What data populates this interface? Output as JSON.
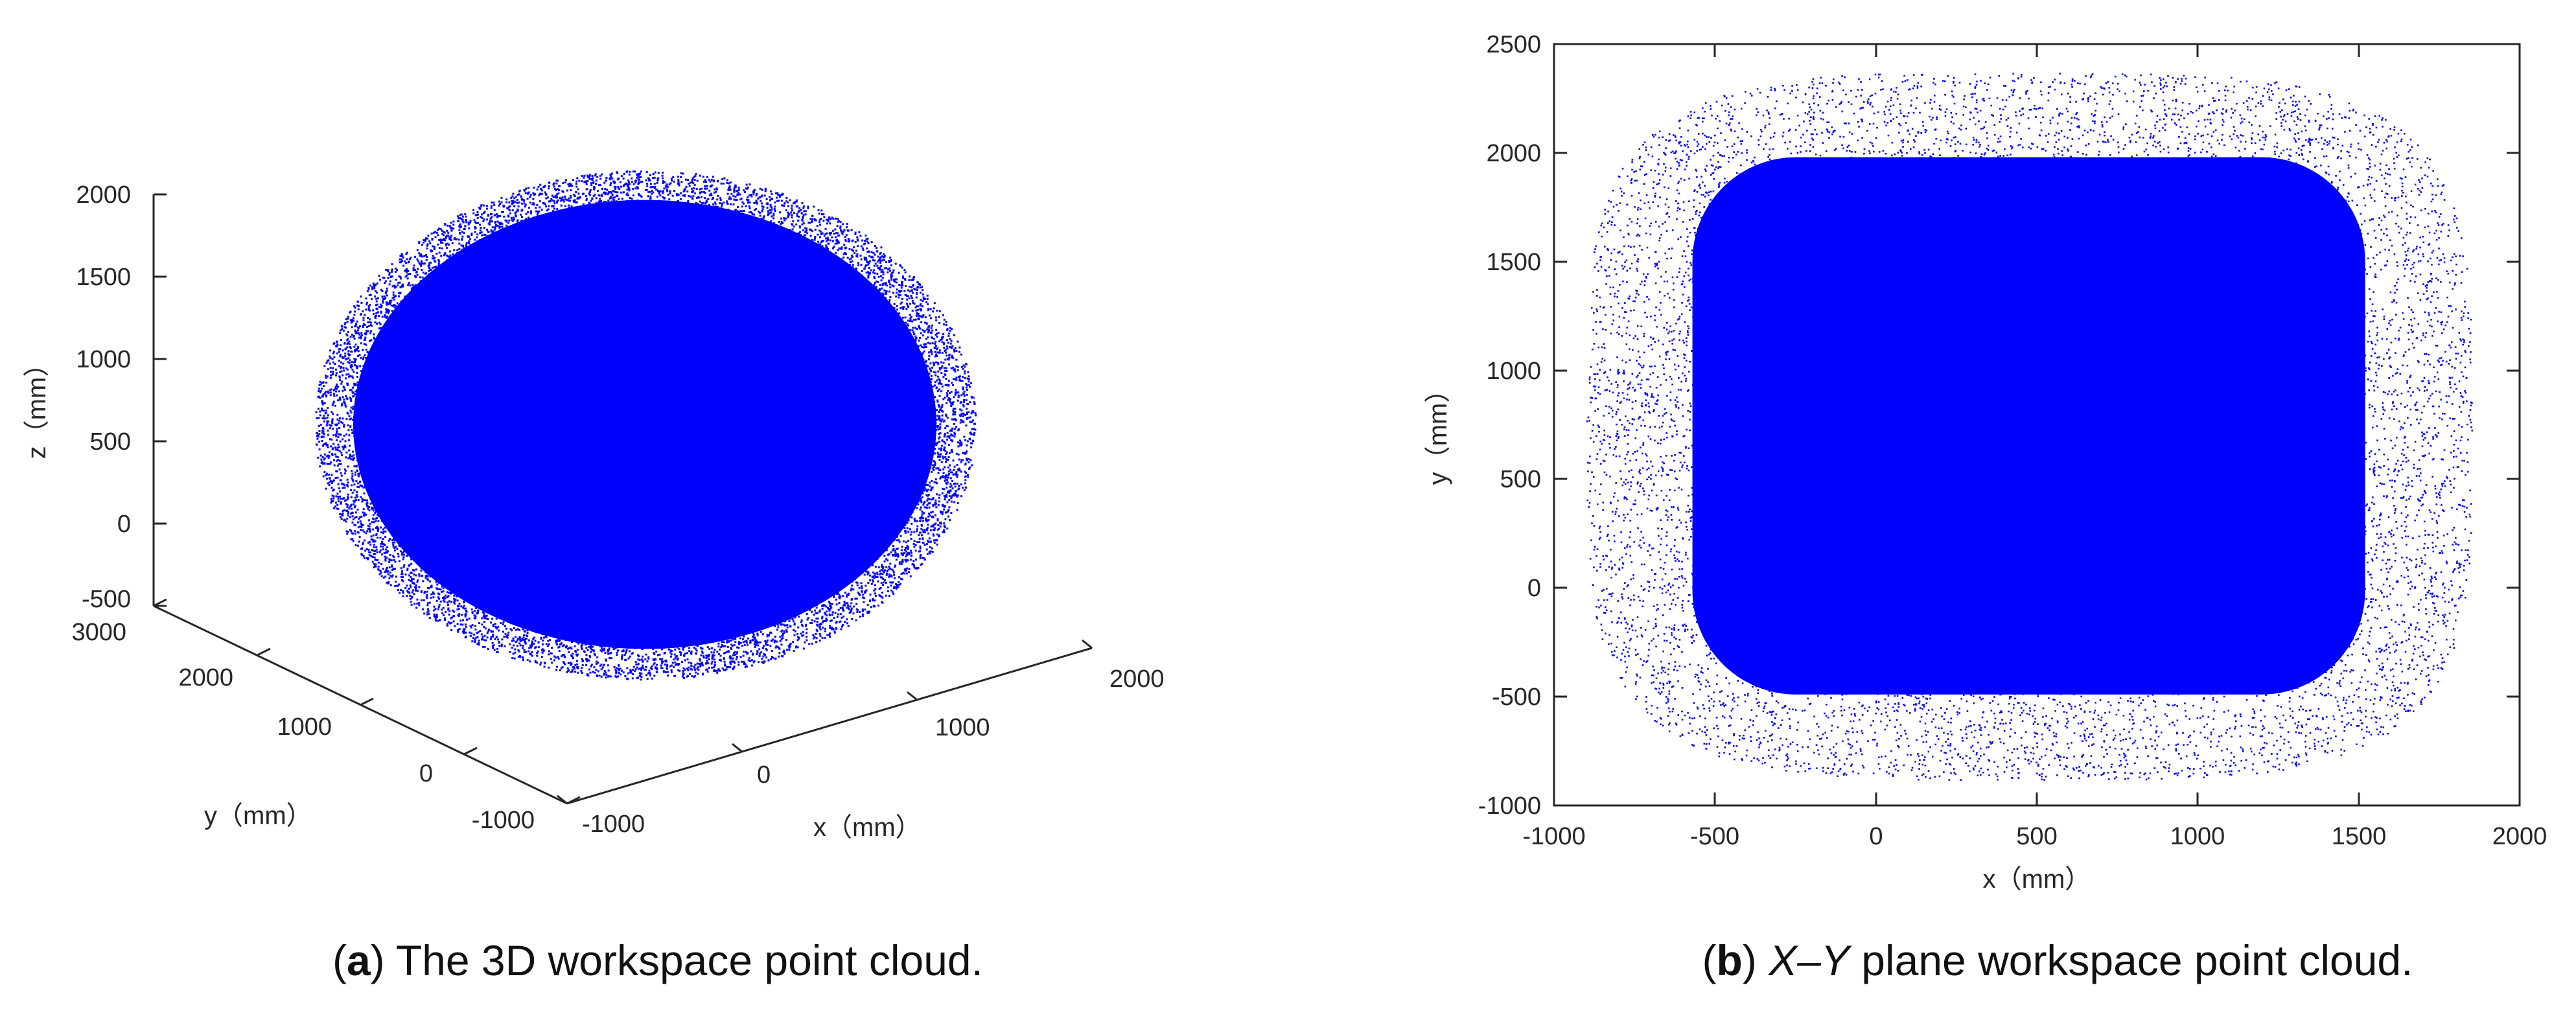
{
  "chart_data": [
    {
      "type": "scatter",
      "panel_label": "a",
      "caption": "The 3D workspace point cloud.",
      "xlabel": "x（mm）",
      "ylabel": "y（mm）",
      "zlabel": "z（mm）",
      "xlim": [
        -1000,
        2000
      ],
      "ylim": [
        -1000,
        3000
      ],
      "zlim": [
        -500,
        2000
      ],
      "x_ticks": [
        "-1000",
        "0",
        "1000",
        "2000"
      ],
      "y_ticks": [
        "-1000",
        "0",
        "1000",
        "2000",
        "3000"
      ],
      "z_ticks": [
        "-500",
        "0",
        "500",
        "1000",
        "1500",
        "2000"
      ],
      "cloud": {
        "x_range": [
          -900,
          1850
        ],
        "y_range": [
          -800,
          2400
        ],
        "z_range": [
          -500,
          1900
        ]
      },
      "marker_color": "#0000ff"
    },
    {
      "type": "scatter",
      "panel_label": "b",
      "caption_italic": "X–Y",
      "caption": " plane workspace point cloud.",
      "xlabel": "x（mm）",
      "ylabel": "y（mm）",
      "xlim": [
        -1000,
        2000
      ],
      "ylim": [
        -1000,
        2500
      ],
      "x_ticks": [
        "-1000",
        "-500",
        "0",
        "500",
        "1000",
        "1500",
        "2000"
      ],
      "y_ticks": [
        "-1000",
        "-500",
        "0",
        "500",
        "1000",
        "1500",
        "2000",
        "2500"
      ],
      "cloud": {
        "x_range": [
          -900,
          1850
        ],
        "y_range": [
          -880,
          2370
        ]
      },
      "marker_color": "#0000ff",
      "axis_color": "#262626"
    }
  ]
}
